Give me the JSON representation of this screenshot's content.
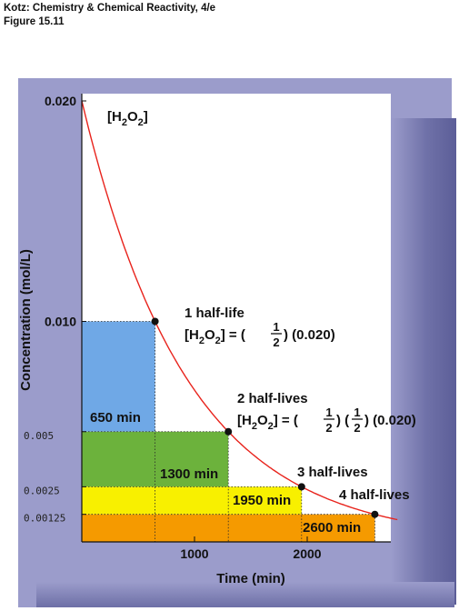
{
  "header": {
    "line1": "Kotz:  Chemistry & Chemical Reactivity, 4/e",
    "line2": "Figure 15.11"
  },
  "chart_data": {
    "type": "line",
    "title": "",
    "series": [
      {
        "name": "[H2O2]",
        "half_life_min": 650,
        "initial": 0.02
      }
    ],
    "xlabel": "Time (min)",
    "ylabel": "Concentration (mol/L)",
    "xlim": [
      0,
      2800
    ],
    "ylim": [
      0,
      0.02
    ],
    "x_ticks": [
      {
        "value": 1000,
        "label": "1000"
      },
      {
        "value": 2000,
        "label": "2000"
      }
    ],
    "y_ticks": [
      {
        "value": 0.02,
        "label": "0.020",
        "style": "printed"
      },
      {
        "value": 0.01,
        "label": "0.010",
        "style": "printed"
      },
      {
        "value": 0.005,
        "label": "0.005",
        "style": "handwritten"
      },
      {
        "value": 0.0025,
        "label": "0.0025",
        "style": "handwritten"
      },
      {
        "value": 0.00125,
        "label": "0.00125",
        "style": "handwritten"
      }
    ],
    "points": [
      {
        "x": 650,
        "y": 0.01
      },
      {
        "x": 1300,
        "y": 0.005
      },
      {
        "x": 1950,
        "y": 0.0025
      },
      {
        "x": 2600,
        "y": 0.00125
      }
    ],
    "regions": [
      {
        "x_end": 650,
        "y_top": 0.01,
        "y_bottom": 0.005,
        "color": "#6fa8e6",
        "label": "650 min"
      },
      {
        "x_end": 1300,
        "y_top": 0.005,
        "y_bottom": 0.0025,
        "color": "#6cb23c",
        "label": "1300 min"
      },
      {
        "x_end": 1950,
        "y_top": 0.0025,
        "y_bottom": 0.00125,
        "color": "#f8f000",
        "label": "1950 min"
      },
      {
        "x_end": 2600,
        "y_top": 0.00125,
        "y_bottom": 0,
        "color": "#f59a00",
        "label": "2600 min"
      }
    ],
    "annotations": {
      "series_label": "[H",
      "series_label_sub": "2",
      "series_label_mid": "O",
      "series_label_sub2": "2",
      "series_label_end": "]",
      "half1_title": "1 half-life",
      "half2_title": "2 half-lives",
      "half3_title": "3 half-lives",
      "half4_title": "4 half-lives",
      "half1_eq_lhs": "[H",
      "half1_eq_sub": "2",
      "half1_eq_mid": "O",
      "half1_eq_sub2": "2",
      "half1_eq_rest": "] = (",
      "half1_frac_num": "1",
      "half1_frac_den": "2",
      "half1_tail": ") (0.020)",
      "half2_eq_lhs": "[H",
      "half2_eq_sub": "2",
      "half2_eq_mid": "O",
      "half2_eq_sub2": "2",
      "half2_eq_rest": "] = (",
      "half2_frac1_num": "1",
      "half2_frac1_den": "2",
      "half2_between": ") (",
      "half2_frac2_num": "1",
      "half2_frac2_den": "2",
      "half2_tail": ") (0.020)"
    },
    "colors": {
      "curve": "#e8231c",
      "panel": "#9b9ccb",
      "plot_bg": "#ffffff",
      "dot": "#111111"
    },
    "grid": false
  }
}
